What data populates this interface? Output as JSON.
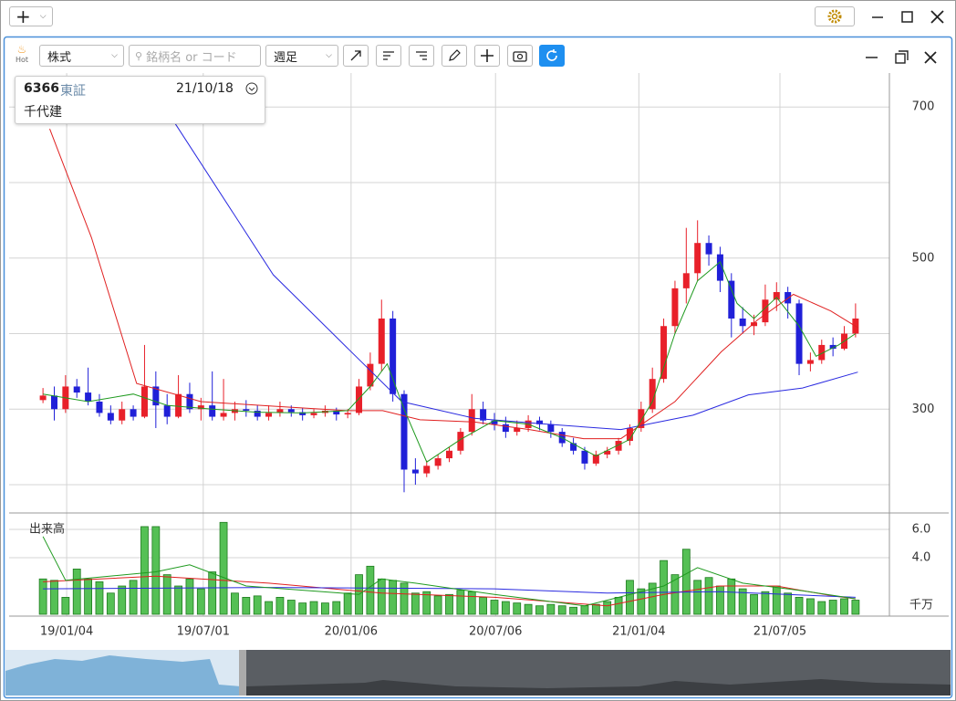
{
  "window": {
    "add_button": "+"
  },
  "toolbar": {
    "hot": "Hot",
    "market": "株式",
    "search_placeholder": "銘柄名 or コード",
    "period": "週足"
  },
  "info": {
    "code": "6366",
    "exchange": "東証",
    "date": "21/10/18",
    "name": "千代建"
  },
  "chart_data": [
    {
      "type": "candlestick",
      "up_color": "#e8202a",
      "down_color": "#2020d8",
      "xlim": [
        -3,
        75
      ],
      "xticks": [
        {
          "value": 2.1,
          "label": "19/01/04"
        },
        {
          "value": 14.2,
          "label": "19/07/01"
        },
        {
          "value": 27.3,
          "label": "20/01/06"
        },
        {
          "value": 40.1,
          "label": "20/07/06"
        },
        {
          "value": 52.8,
          "label": "21/01/04"
        },
        {
          "value": 65.3,
          "label": "21/07/05"
        }
      ],
      "ylim": [
        165,
        745
      ],
      "yticks": [
        300,
        500,
        700
      ],
      "grid_lines": [
        200,
        400,
        600
      ],
      "ohlc": [
        [
          312,
          328,
          308,
          318
        ],
        [
          318,
          330,
          285,
          300
        ],
        [
          300,
          345,
          295,
          330
        ],
        [
          330,
          340,
          315,
          322
        ],
        [
          322,
          355,
          305,
          310
        ],
        [
          310,
          320,
          290,
          295
        ],
        [
          295,
          305,
          280,
          285
        ],
        [
          285,
          310,
          280,
          300
        ],
        [
          300,
          305,
          285,
          290
        ],
        [
          290,
          385,
          288,
          330
        ],
        [
          330,
          350,
          275,
          305
        ],
        [
          305,
          320,
          280,
          290
        ],
        [
          290,
          345,
          288,
          320
        ],
        [
          320,
          335,
          295,
          300
        ],
        [
          300,
          315,
          285,
          305
        ],
        [
          305,
          350,
          285,
          290
        ],
        [
          290,
          340,
          285,
          295
        ],
        [
          295,
          310,
          285,
          300
        ],
        [
          300,
          312,
          290,
          298
        ],
        [
          298,
          305,
          285,
          290
        ],
        [
          290,
          305,
          285,
          295
        ],
        [
          295,
          310,
          290,
          300
        ],
        [
          300,
          305,
          290,
          296
        ],
        [
          296,
          302,
          285,
          292
        ],
        [
          292,
          300,
          288,
          295
        ],
        [
          295,
          305,
          290,
          298
        ],
        [
          298,
          302,
          285,
          293
        ],
        [
          293,
          300,
          288,
          295
        ],
        [
          295,
          340,
          292,
          330
        ],
        [
          330,
          375,
          325,
          360
        ],
        [
          360,
          445,
          350,
          420
        ],
        [
          420,
          430,
          310,
          320
        ],
        [
          320,
          325,
          190,
          220
        ],
        [
          220,
          235,
          200,
          215
        ],
        [
          215,
          232,
          210,
          225
        ],
        [
          225,
          240,
          220,
          235
        ],
        [
          235,
          250,
          230,
          245
        ],
        [
          245,
          275,
          240,
          270
        ],
        [
          270,
          320,
          265,
          300
        ],
        [
          300,
          310,
          280,
          285
        ],
        [
          285,
          295,
          272,
          280
        ],
        [
          280,
          290,
          262,
          270
        ],
        [
          270,
          285,
          265,
          275
        ],
        [
          275,
          292,
          270,
          285
        ],
        [
          285,
          290,
          272,
          280
        ],
        [
          280,
          285,
          262,
          270
        ],
        [
          270,
          275,
          250,
          255
        ],
        [
          255,
          262,
          240,
          245
        ],
        [
          245,
          250,
          220,
          228
        ],
        [
          228,
          245,
          225,
          240
        ],
        [
          240,
          250,
          235,
          245
        ],
        [
          245,
          262,
          240,
          258
        ],
        [
          258,
          280,
          252,
          275
        ],
        [
          275,
          310,
          270,
          300
        ],
        [
          300,
          355,
          295,
          340
        ],
        [
          340,
          420,
          335,
          410
        ],
        [
          410,
          470,
          400,
          460
        ],
        [
          460,
          540,
          440,
          480
        ],
        [
          480,
          550,
          470,
          520
        ],
        [
          520,
          530,
          490,
          505
        ],
        [
          505,
          515,
          455,
          470
        ],
        [
          470,
          480,
          395,
          420
        ],
        [
          420,
          435,
          400,
          410
        ],
        [
          410,
          425,
          398,
          415
        ],
        [
          415,
          465,
          410,
          445
        ],
        [
          445,
          468,
          430,
          455
        ],
        [
          455,
          462,
          420,
          440
        ],
        [
          440,
          445,
          345,
          360
        ],
        [
          360,
          375,
          350,
          365
        ],
        [
          365,
          392,
          360,
          385
        ],
        [
          385,
          395,
          370,
          380
        ],
        [
          380,
          410,
          378,
          400
        ],
        [
          400,
          440,
          395,
          420
        ]
      ],
      "series": [
        {
          "color": "#2a2ae0",
          "x": [
            11.5,
            20.4,
            26.9,
            31.8,
            38.2,
            44.7,
            51.2,
            57.6,
            62.5,
            67.3,
            72.2
          ],
          "values": [
            683,
            478,
            382,
            310,
            288,
            280,
            273,
            292,
            319,
            328,
            349
          ]
        },
        {
          "color": "#e02020",
          "x": [
            0.6,
            4.3,
            8.3,
            14,
            20.4,
            26.9,
            30.1,
            33.4,
            38.2,
            43.1,
            47.9,
            51.2,
            56,
            60.1,
            63.3,
            66.5,
            69.8,
            72.2
          ],
          "values": [
            671,
            527,
            334,
            310,
            304,
            298,
            298,
            286,
            283,
            273,
            261,
            261,
            310,
            376,
            418,
            452,
            430,
            408
          ]
        },
        {
          "color": "#1f9a1f",
          "x": [
            0,
            4,
            8,
            11,
            15,
            19,
            23,
            27,
            29,
            30.5,
            32,
            34,
            37,
            40,
            43,
            46,
            49,
            52,
            54,
            56,
            58,
            60,
            61.5,
            63,
            65,
            67,
            68.5,
            70.5,
            72
          ],
          "values": [
            320,
            310,
            320,
            305,
            300,
            296,
            295,
            298,
            330,
            360,
            300,
            230,
            260,
            285,
            280,
            262,
            238,
            260,
            310,
            400,
            470,
            495,
            440,
            420,
            448,
            410,
            370,
            385,
            400
          ]
        }
      ]
    },
    {
      "type": "bar",
      "title": "出来高",
      "unit": "千万",
      "color": "#55c055",
      "edge_color": "#1e7a1e",
      "xlim": [
        -3,
        75
      ],
      "ylim": [
        0,
        7.1
      ],
      "yticks": [
        {
          "value": 4,
          "label": "4.0"
        },
        {
          "value": 6,
          "label": "6.0"
        }
      ],
      "values": [
        2.5,
        2.4,
        1.2,
        3.2,
        2.5,
        2.3,
        1.5,
        2.0,
        2.4,
        6.2,
        6.2,
        2.8,
        2.0,
        2.5,
        1.8,
        3.0,
        6.5,
        1.5,
        1.2,
        1.3,
        0.9,
        1.2,
        1.0,
        0.8,
        0.9,
        0.8,
        0.9,
        1.5,
        2.8,
        3.4,
        2.5,
        2.4,
        2.2,
        1.5,
        1.6,
        1.3,
        1.4,
        1.7,
        1.6,
        1.2,
        1.0,
        0.9,
        0.8,
        0.7,
        0.6,
        0.7,
        0.6,
        0.5,
        0.6,
        0.7,
        0.9,
        1.2,
        2.4,
        1.8,
        2.2,
        3.8,
        2.8,
        4.6,
        2.4,
        2.6,
        2.0,
        2.5,
        1.8,
        1.4,
        1.6,
        2.0,
        1.5,
        1.2,
        1.1,
        0.9,
        1.0,
        1.1,
        1.0
      ],
      "series": [
        {
          "color": "#e02020",
          "x": [
            0,
            10,
            20,
            30,
            40,
            50,
            55,
            60,
            65,
            70,
            72
          ],
          "values": [
            2.3,
            2.7,
            2.2,
            1.5,
            1.2,
            0.6,
            1.4,
            2.0,
            2.0,
            1.3,
            1.1
          ]
        },
        {
          "color": "#2a2ae0",
          "x": [
            0,
            20,
            40,
            50,
            60,
            72
          ],
          "values": [
            1.8,
            1.9,
            1.8,
            1.5,
            1.6,
            1.2
          ]
        },
        {
          "color": "#1f9a1f",
          "x": [
            0,
            2,
            10,
            13,
            18,
            28,
            30,
            33,
            40,
            48,
            55,
            58,
            62,
            67,
            72
          ],
          "values": [
            5.5,
            2.4,
            3.0,
            3.5,
            2.0,
            1.4,
            2.5,
            2.2,
            1.4,
            0.6,
            2.0,
            3.3,
            2.2,
            1.7,
            1.1
          ]
        }
      ]
    }
  ]
}
